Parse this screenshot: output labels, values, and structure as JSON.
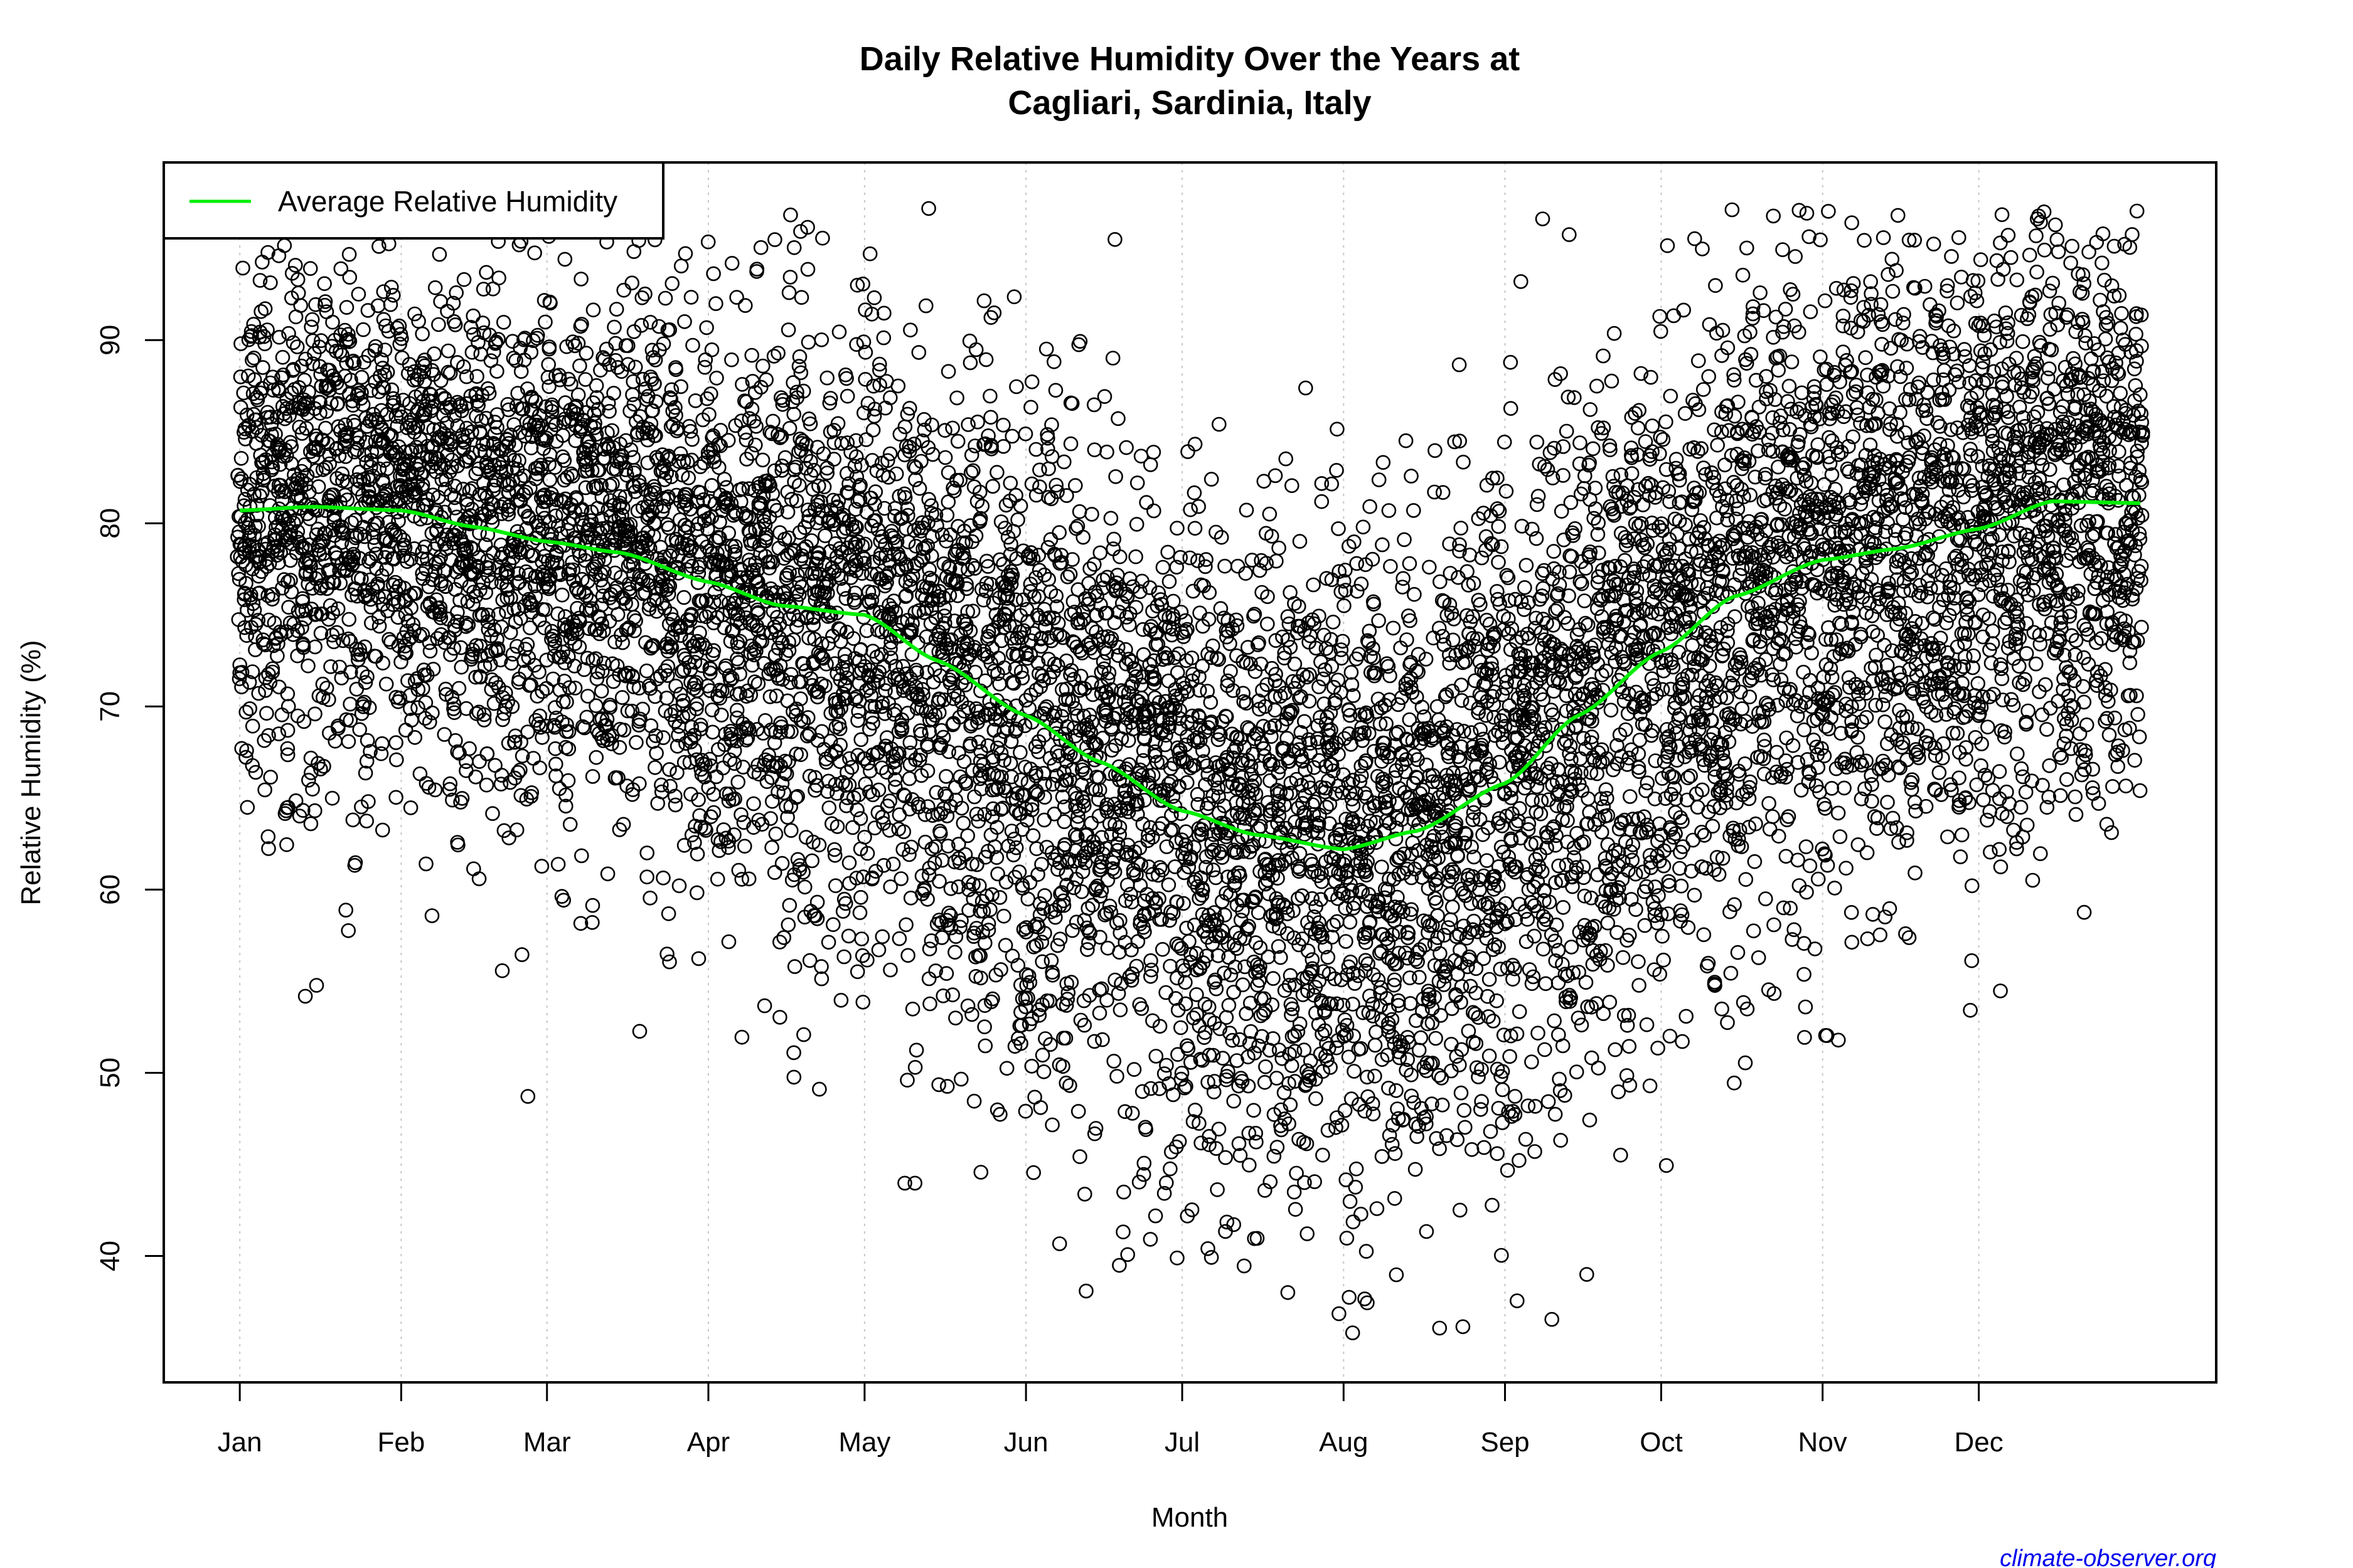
{
  "chart_data": {
    "type": "scatter",
    "title": [
      "Daily Relative Humidity Over the Years at",
      "Cagliari, Sardinia, Italy"
    ],
    "xlabel": "Month",
    "ylabel": "Relative Humidity  (%)",
    "x_unit": "day of year",
    "xlim": [
      -13.6,
      380.6
    ],
    "ylim": [
      33.1,
      99.7
    ],
    "x_ticks": [
      {
        "label": "Jan",
        "day": 1
      },
      {
        "label": "Feb",
        "day": 32
      },
      {
        "label": "Mar",
        "day": 60
      },
      {
        "label": "Apr",
        "day": 91
      },
      {
        "label": "May",
        "day": 121
      },
      {
        "label": "Jun",
        "day": 152
      },
      {
        "label": "Jul",
        "day": 182
      },
      {
        "label": "Aug",
        "day": 213
      },
      {
        "label": "Sep",
        "day": 244
      },
      {
        "label": "Oct",
        "day": 274
      },
      {
        "label": "Nov",
        "day": 305
      },
      {
        "label": "Dec",
        "day": 335
      }
    ],
    "y_ticks": [
      40,
      50,
      60,
      70,
      80,
      90
    ],
    "grid": "vertical dotted at month starts",
    "legend": {
      "placement": "top-left",
      "entries": [
        {
          "label": "Average Relative Humidity",
          "color": "#00ee00"
        }
      ]
    },
    "points_style": {
      "marker": "open circle",
      "color": "#000000"
    },
    "average_series": {
      "name": "Average Relative Humidity",
      "color": "#00ee00",
      "x": [
        1,
        15,
        32,
        46,
        60,
        74,
        91,
        105,
        121,
        135,
        152,
        166,
        182,
        196,
        213,
        227,
        244,
        258,
        274,
        288,
        305,
        319,
        335,
        349,
        366
      ],
      "y": [
        80.7,
        80.9,
        80.7,
        79.8,
        79.0,
        78.4,
        76.8,
        75.5,
        75.0,
        72.5,
        69.5,
        67.0,
        64.3,
        63.0,
        62.2,
        63.2,
        65.8,
        69.5,
        73.0,
        76.0,
        78.0,
        78.6,
        79.7,
        81.2,
        81.1
      ]
    },
    "observed_range": {
      "min": 35.6,
      "max": 97.2
    }
  },
  "watermark": "climate-observer.org"
}
